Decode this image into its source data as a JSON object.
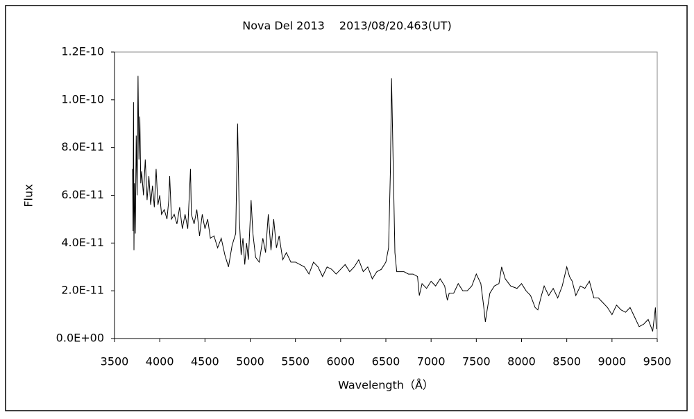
{
  "chart_data": {
    "type": "line",
    "title": "Nova Del 2013　 2013/08/20.463(UT)",
    "xlabel": "Wavelength（Å）",
    "ylabel": "Flux",
    "color": "#000000",
    "grid": false,
    "xlim": [
      3500,
      9500
    ],
    "xticks": [
      3500,
      4000,
      4500,
      5000,
      5500,
      6000,
      6500,
      7000,
      7500,
      8000,
      8500,
      9000,
      9500
    ],
    "ylim": [
      0,
      1.2e-10
    ],
    "yticks": [
      {
        "value": 0,
        "label": "0.0E+00"
      },
      {
        "value": 2e-11,
        "label": "2.0E-11"
      },
      {
        "value": 4e-11,
        "label": "4.0E-11"
      },
      {
        "value": 6e-11,
        "label": "6.0E-11"
      },
      {
        "value": 8e-11,
        "label": "8.0E-11"
      },
      {
        "value": 1e-10,
        "label": "1.0E-10"
      },
      {
        "value": 1.2e-10,
        "label": "1.2E-10"
      }
    ],
    "x": [
      3700,
      3705,
      3710,
      3715,
      3720,
      3730,
      3740,
      3750,
      3760,
      3770,
      3780,
      3790,
      3800,
      3820,
      3840,
      3860,
      3880,
      3900,
      3920,
      3940,
      3960,
      3980,
      4000,
      4020,
      4050,
      4080,
      4100,
      4110,
      4130,
      4160,
      4190,
      4220,
      4250,
      4280,
      4310,
      4340,
      4350,
      4380,
      4410,
      4440,
      4470,
      4500,
      4530,
      4560,
      4600,
      4640,
      4680,
      4720,
      4760,
      4800,
      4840,
      4861,
      4880,
      4900,
      4920,
      4940,
      4960,
      4980,
      5010,
      5030,
      5060,
      5100,
      5140,
      5170,
      5200,
      5230,
      5260,
      5290,
      5320,
      5360,
      5400,
      5450,
      5500,
      5550,
      5600,
      5650,
      5700,
      5750,
      5800,
      5850,
      5900,
      5950,
      6000,
      6050,
      6100,
      6150,
      6200,
      6250,
      6300,
      6350,
      6400,
      6450,
      6500,
      6530,
      6550,
      6563,
      6580,
      6600,
      6620,
      6700,
      6750,
      6800,
      6850,
      6870,
      6900,
      6950,
      7000,
      7050,
      7100,
      7150,
      7180,
      7200,
      7250,
      7300,
      7350,
      7400,
      7450,
      7500,
      7550,
      7580,
      7600,
      7620,
      7650,
      7700,
      7750,
      7780,
      7820,
      7880,
      7950,
      8000,
      8050,
      8100,
      8150,
      8180,
      8220,
      8250,
      8300,
      8350,
      8400,
      8450,
      8500,
      8530,
      8560,
      8600,
      8650,
      8700,
      8750,
      8800,
      8850,
      8900,
      8950,
      9000,
      9050,
      9100,
      9150,
      9200,
      9250,
      9300,
      9350,
      9400,
      9450,
      9480,
      9490
    ],
    "values": [
      7.1e-11,
      4.5e-11,
      9.9e-11,
      3.7e-11,
      6.5e-11,
      4.4e-11,
      8.5e-11,
      6e-11,
      1.1e-10,
      7.5e-11,
      9.3e-11,
      6.5e-11,
      7e-11,
      6e-11,
      7.5e-11,
      5.8e-11,
      6.8e-11,
      5.6e-11,
      6.4e-11,
      5.5e-11,
      7.1e-11,
      5.6e-11,
      6e-11,
      5.2e-11,
      5.4e-11,
      5e-11,
      5.8e-11,
      6.8e-11,
      5e-11,
      5.2e-11,
      4.8e-11,
      5.5e-11,
      4.6e-11,
      5.2e-11,
      4.6e-11,
      7.1e-11,
      5.2e-11,
      4.8e-11,
      5.4e-11,
      4.3e-11,
      5.2e-11,
      4.6e-11,
      5e-11,
      4.2e-11,
      4.3e-11,
      3.8e-11,
      4.2e-11,
      3.5e-11,
      3e-11,
      3.9e-11,
      4.4e-11,
      9e-11,
      5e-11,
      3.5e-11,
      4.2e-11,
      3.1e-11,
      4e-11,
      3.3e-11,
      5.8e-11,
      4.4e-11,
      3.4e-11,
      3.2e-11,
      4.2e-11,
      3.6e-11,
      5.2e-11,
      3.7e-11,
      5e-11,
      3.8e-11,
      4.3e-11,
      3.3e-11,
      3.6e-11,
      3.2e-11,
      3.2e-11,
      3.1e-11,
      3e-11,
      2.7e-11,
      3.2e-11,
      3e-11,
      2.6e-11,
      3e-11,
      2.9e-11,
      2.7e-11,
      2.9e-11,
      3.1e-11,
      2.8e-11,
      3e-11,
      3.3e-11,
      2.8e-11,
      3e-11,
      2.5e-11,
      2.8e-11,
      2.9e-11,
      3.2e-11,
      3.8e-11,
      7e-11,
      1.09e-10,
      7.5e-11,
      3.6e-11,
      2.8e-11,
      2.8e-11,
      2.7e-11,
      2.7e-11,
      2.6e-11,
      1.8e-11,
      2.3e-11,
      2.1e-11,
      2.4e-11,
      2.2e-11,
      2.5e-11,
      2.2e-11,
      1.6e-11,
      1.9e-11,
      1.9e-11,
      2.3e-11,
      2e-11,
      2e-11,
      2.2e-11,
      2.7e-11,
      2.3e-11,
      1.4e-11,
      7e-12,
      1.2e-11,
      1.9e-11,
      2.2e-11,
      2.3e-11,
      3e-11,
      2.5e-11,
      2.2e-11,
      2.1e-11,
      2.3e-11,
      2e-11,
      1.8e-11,
      1.3e-11,
      1.2e-11,
      1.8e-11,
      2.2e-11,
      1.8e-11,
      2.1e-11,
      1.7e-11,
      2.2e-11,
      3e-11,
      2.6e-11,
      2.4e-11,
      1.8e-11,
      2.2e-11,
      2.1e-11,
      2.4e-11,
      1.7e-11,
      1.7e-11,
      1.5e-11,
      1.3e-11,
      1e-11,
      1.4e-11,
      1.2e-11,
      1.1e-11,
      1.3e-11,
      9e-12,
      5e-12,
      6e-12,
      8e-12,
      3e-12,
      1.3e-11,
      4e-12
    ]
  }
}
